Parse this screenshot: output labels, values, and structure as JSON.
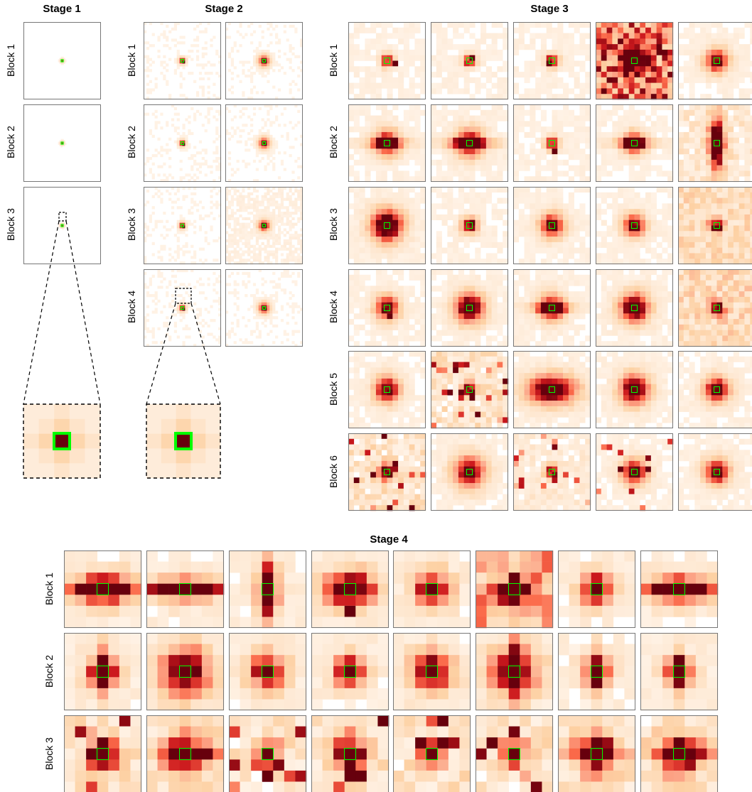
{
  "stages": [
    {
      "title": "Stage 1",
      "rows": [
        "Block 1",
        "Block 2",
        "Block 3"
      ],
      "map_cols": 1
    },
    {
      "title": "Stage 2",
      "rows": [
        "Block 1",
        "Block 2",
        "Block 3",
        "Block 4"
      ],
      "map_cols": 2
    },
    {
      "title": "Stage 3",
      "rows": [
        "Block 1",
        "Block 2",
        "Block 3",
        "Block 4",
        "Block 5",
        "Block 6"
      ],
      "map_cols": 5
    },
    {
      "title": "Stage 4",
      "rows": [
        "Block 1",
        "Block 2",
        "Block 3"
      ],
      "map_cols": 8
    }
  ],
  "colors": {
    "background": "#fff5eb",
    "light": "#fdd0a2",
    "mid": "#fb6a4a",
    "strong": "#cb181d",
    "peak": "#67000d",
    "highlight": "#00ff00",
    "frame": "#777777"
  },
  "zoom_insets": [
    {
      "stage": "Stage 1",
      "row": "Block 3"
    },
    {
      "stage": "Stage 2",
      "row": "Block 4"
    }
  ]
}
